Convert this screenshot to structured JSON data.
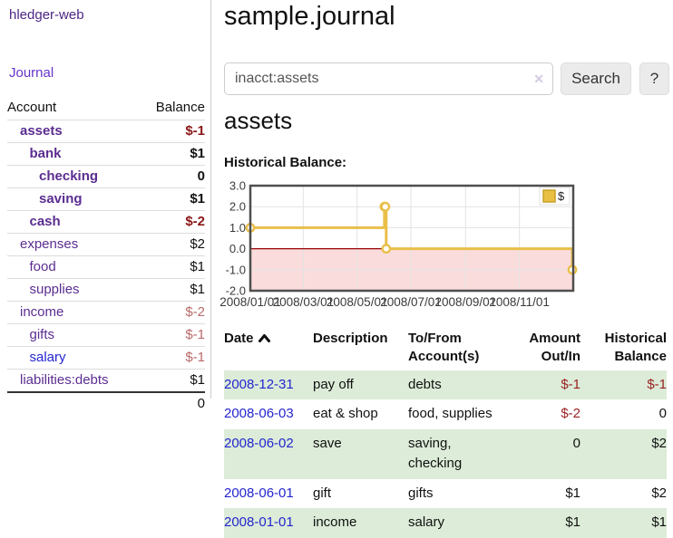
{
  "colors": {
    "link_purple": "#5b2d91",
    "app_title_purple": "#4c2584",
    "journal_purple": "#6535c9",
    "link_blue": "#2425cf",
    "negative_strong": "#8b1717",
    "negative_soft": "#b96a6a",
    "negative_register": "#992222",
    "row_stripe_green": "#dcecd8",
    "divider_gray": "#cccccc",
    "button_bg": "#ebebeb"
  },
  "sidebar": {
    "app_title": "hledger-web",
    "journal_link": "Journal",
    "columns": {
      "account": "Account",
      "balance": "Balance"
    },
    "accounts": [
      {
        "name": "assets",
        "balance": "$-1",
        "depth": 1,
        "emphasis": true
      },
      {
        "name": "bank",
        "balance": "$1",
        "depth": 2,
        "emphasis": true
      },
      {
        "name": "checking",
        "balance": "0",
        "depth": 3,
        "emphasis": true
      },
      {
        "name": "saving",
        "balance": "$1",
        "depth": 3,
        "emphasis": true
      },
      {
        "name": "cash",
        "balance": "$-2",
        "depth": 2,
        "emphasis": true
      },
      {
        "name": "expenses",
        "balance": "$2",
        "depth": 1,
        "emphasis": false
      },
      {
        "name": "food",
        "balance": "$1",
        "depth": 2,
        "emphasis": false
      },
      {
        "name": "supplies",
        "balance": "$1",
        "depth": 2,
        "emphasis": false
      },
      {
        "name": "income",
        "balance": "$-2",
        "depth": 1,
        "emphasis": false
      },
      {
        "name": "gifts",
        "balance": "$-1",
        "depth": 2,
        "emphasis": false
      },
      {
        "name": "salary",
        "balance": "$-1",
        "depth": 2,
        "emphasis": false,
        "link_style": "unvisited"
      },
      {
        "name": "liabilities:debts",
        "balance": "$1",
        "depth": 1,
        "emphasis": false
      }
    ],
    "total": "0"
  },
  "header": {
    "title": "sample.journal"
  },
  "search": {
    "value": "inacct:assets",
    "clear_icon": "✕",
    "search_button": "Search",
    "help_button": "?"
  },
  "main": {
    "account_heading": "assets",
    "chart_label": "Historical Balance:"
  },
  "chart_data": {
    "type": "line",
    "title": "Historical Balance",
    "step": true,
    "series": [
      {
        "name": "$",
        "points": [
          [
            "2008/01/01",
            1
          ],
          [
            "2008/06/01",
            2
          ],
          [
            "2008/06/02",
            2
          ],
          [
            "2008/06/03",
            0
          ],
          [
            "2008/12/31",
            -1
          ]
        ]
      }
    ],
    "x_range": [
      "2008/01/01",
      "2009/01/01"
    ],
    "x_tick_labels": [
      "2008/01/01",
      "2008/03/01",
      "2008/05/01",
      "2008/07/01",
      "2008/09/01",
      "2008/11/01"
    ],
    "y_ticks": [
      3.0,
      2.0,
      1.0,
      0.0,
      -1.0,
      -2.0
    ],
    "ylim": [
      -2,
      3
    ],
    "legend": {
      "label": "$",
      "position": "top-right",
      "swatch": "yellow-square"
    },
    "grid": true,
    "negative_region_shaded": true,
    "colors": {
      "line": "#e9bf4a",
      "marker_fill": "#ffffff",
      "negative_fill": "#fbdcdc",
      "zero_line": "#990000",
      "border": "#4e4e4e",
      "grid": "#e3e3e3",
      "tick_text": "#3a3a3a",
      "legend_swatch": "#e9c044",
      "legend_swatch_border": "#c9a027"
    }
  },
  "register": {
    "columns": [
      {
        "label": "Date",
        "sorted": "asc"
      },
      {
        "label": "Description"
      },
      {
        "label": "To/From Account(s)"
      },
      {
        "label": "Amount Out/In",
        "align": "right"
      },
      {
        "label": "Historical Balance",
        "align": "right"
      }
    ],
    "rows": [
      {
        "date": "2008-12-31",
        "description": "pay off",
        "accounts": "debts",
        "amount": "$-1",
        "balance": "$-1"
      },
      {
        "date": "2008-06-03",
        "description": "eat & shop",
        "accounts": "food, supplies",
        "amount": "$-2",
        "balance": "0"
      },
      {
        "date": "2008-06-02",
        "description": "save",
        "accounts": "saving, checking",
        "amount": "0",
        "balance": "$2"
      },
      {
        "date": "2008-06-01",
        "description": "gift",
        "accounts": "gifts",
        "amount": "$1",
        "balance": "$2"
      },
      {
        "date": "2008-01-01",
        "description": "income",
        "accounts": "salary",
        "amount": "$1",
        "balance": "$1"
      }
    ]
  },
  "icons": {
    "clear": "x-cross",
    "sort_ascending": "chevron-up",
    "legend_swatch": "filled-square"
  }
}
